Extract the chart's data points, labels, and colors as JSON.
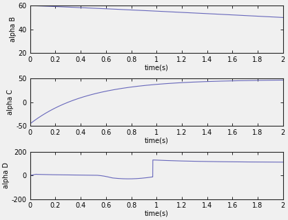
{
  "xlim": [
    0,
    2
  ],
  "xlabel": "time(s)",
  "xticks": [
    0,
    0.2,
    0.4,
    0.6,
    0.8,
    1.0,
    1.2,
    1.4,
    1.6,
    1.8,
    2.0
  ],
  "xticklabels": [
    "0",
    "0.2",
    "0.4",
    "0.6",
    "0.8",
    "1",
    "1.2",
    "1.4",
    "1.6",
    "1.8",
    "2"
  ],
  "subplot1": {
    "ylabel": "alpha B",
    "ylim": [
      20,
      60
    ],
    "yticks": [
      20,
      40,
      60
    ]
  },
  "subplot2": {
    "ylabel": "alpha C",
    "ylim": [
      -50,
      50
    ],
    "yticks": [
      -50,
      0,
      50
    ]
  },
  "subplot3": {
    "ylabel": "alpha D",
    "ylim": [
      -200,
      200
    ],
    "yticks": [
      -200,
      0,
      200
    ]
  },
  "line_color": "#6666bb",
  "axes_bg": "#f0f0f0",
  "fig_bg": "#f0f0f0",
  "spine_color": "#222222",
  "tick_color": "#222222",
  "font_size": 7,
  "label_fontsize": 7,
  "dpi": 100,
  "figsize": [
    4.18,
    3.2
  ]
}
